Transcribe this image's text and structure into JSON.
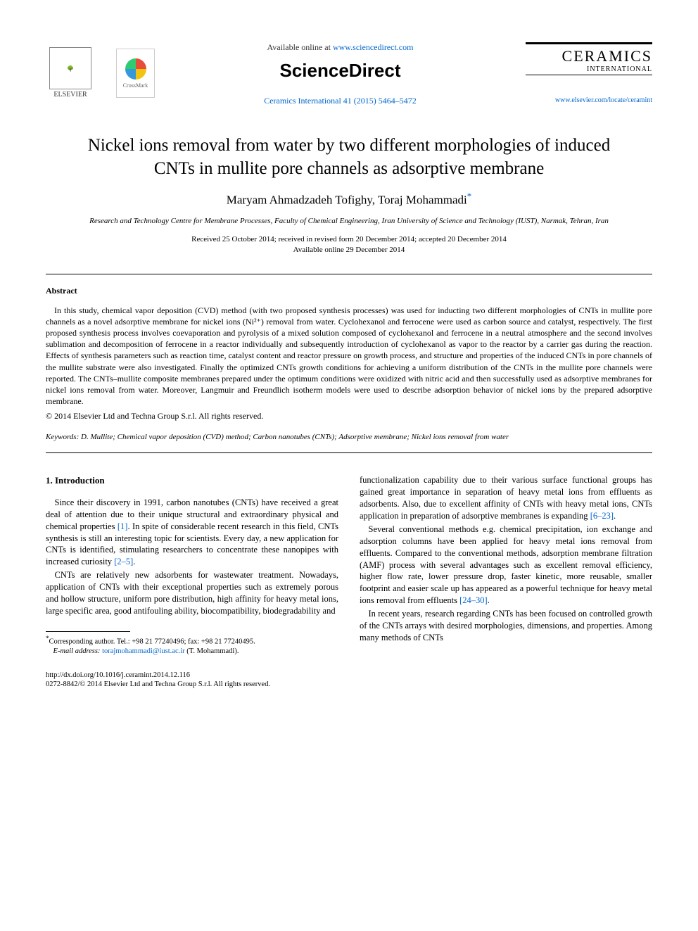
{
  "header": {
    "elsevier_label": "ELSEVIER",
    "crossmark_label": "CrossMark",
    "available_prefix": "Available online at ",
    "available_url": "www.sciencedirect.com",
    "sciencedirect_brand": "ScienceDirect",
    "citation_text": "Ceramics International 41 (2015) 5464–5472",
    "journal_main": "CERAMICS",
    "journal_sub": "INTERNATIONAL",
    "journal_locate": "www.elsevier.com/locate/ceramint"
  },
  "title_line1": "Nickel ions removal from water by two different morphologies of induced",
  "title_line2": "CNTs in mullite pore channels as adsorptive membrane",
  "authors": {
    "a1": "Maryam Ahmadzadeh Tofighy",
    "sep": ", ",
    "a2": "Toraj Mohammadi",
    "mark": "*"
  },
  "affiliation": "Research and Technology Centre for Membrane Processes, Faculty of Chemical Engineering, Iran University of Science and Technology (IUST), Narmak, Tehran, Iran",
  "dates": {
    "line1": "Received 25 October 2014; received in revised form 20 December 2014; accepted 20 December 2014",
    "line2": "Available online 29 December 2014"
  },
  "abstract": {
    "heading": "Abstract",
    "body": "In this study, chemical vapor deposition (CVD) method (with two proposed synthesis processes) was used for inducting two different morphologies of CNTs in mullite pore channels as a novel adsorptive membrane for nickel ions (Ni²⁺) removal from water. Cyclohexanol and ferrocene were used as carbon source and catalyst, respectively. The first proposed synthesis process involves coevaporation and pyrolysis of a mixed solution composed of cyclohexanol and ferrocene in a neutral atmosphere and the second involves sublimation and decomposition of ferrocene in a reactor individually and subsequently introduction of cyclohexanol as vapor to the reactor by a carrier gas during the reaction. Effects of synthesis parameters such as reaction time, catalyst content and reactor pressure on growth process, and structure and properties of the induced CNTs in pore channels of the mullite substrate were also investigated. Finally the optimized CNTs growth conditions for achieving a uniform distribution of the CNTs in the mullite pore channels were reported. The CNTs–mullite composite membranes prepared under the optimum conditions were oxidized with nitric acid and then successfully used as adsorptive membranes for nickel ions removal from water. Moreover, Langmuir and Freundlich isotherm models were used to describe adsorption behavior of nickel ions by the prepared adsorptive membrane.",
    "copyright": "© 2014 Elsevier Ltd and Techna Group S.r.l. All rights reserved."
  },
  "keywords": {
    "label": "Keywords:",
    "text": " D. Mullite; Chemical vapor deposition (CVD) method; Carbon nanotubes (CNTs); Adsorptive membrane; Nickel ions removal from water"
  },
  "introduction": {
    "heading": "1.  Introduction",
    "left_p1_a": "Since their discovery in 1991, carbon nanotubes (CNTs) have received a great deal of attention due to their unique structural and extraordinary physical and chemical properties ",
    "left_p1_cite1": "[1]",
    "left_p1_b": ". In spite of considerable recent research in this field, CNTs synthesis is still an interesting topic for scientists. Every day, a new application for CNTs is identified, stimulating researchers to concentrate these nanopipes with increased curiosity ",
    "left_p1_cite2": "[2–5]",
    "left_p1_c": ".",
    "left_p2": "CNTs are relatively new adsorbents for wastewater treatment. Nowadays, application of CNTs with their exceptional properties such as extremely porous and hollow structure, uniform pore distribution, high affinity for heavy metal ions, large specific area, good antifouling ability, biocompatibility, biodegradability and",
    "right_p1_a": "functionalization capability due to their various surface functional groups has gained great importance in separation of heavy metal ions from effluents as adsorbents. Also, due to excellent affinity of CNTs with heavy metal ions, CNTs application in preparation of adsorptive membranes is expanding ",
    "right_p1_cite": "[6–23]",
    "right_p1_b": ".",
    "right_p2_a": "Several conventional methods e.g. chemical precipitation, ion exchange and adsorption columns have been applied for heavy metal ions removal from effluents. Compared to the conventional methods, adsorption membrane filtration (AMF) process with several advantages such as excellent removal efficiency, higher flow rate, lower pressure drop, faster kinetic, more reusable, smaller footprint and easier scale up has appeared as a powerful technique for heavy metal ions removal from effluents ",
    "right_p2_cite": "[24–30]",
    "right_p2_b": ".",
    "right_p3": "In recent years, research regarding CNTs has been focused on controlled growth of the CNTs arrays with desired morphologies, dimensions, and properties. Among many methods of CNTs"
  },
  "footnote": {
    "star": "*",
    "coresp": "Corresponding author. Tel.: +98 21 77240496; fax: +98 21 77240495.",
    "email_label": "E-mail address:",
    "email": "torajmohammadi@iust.ac.ir",
    "email_tail": " (T. Mohammadi)."
  },
  "footer": {
    "doi": "http://dx.doi.org/10.1016/j.ceramint.2014.12.116",
    "issn": "0272-8842/© 2014 Elsevier Ltd and Techna Group S.r.l. All rights reserved."
  },
  "colors": {
    "link": "#0066cc",
    "text": "#000000",
    "bg": "#ffffff"
  },
  "typography": {
    "body_pt": 12,
    "title_pt": 25,
    "authors_pt": 17,
    "small_pt": 11,
    "footnote_pt": 10
  }
}
